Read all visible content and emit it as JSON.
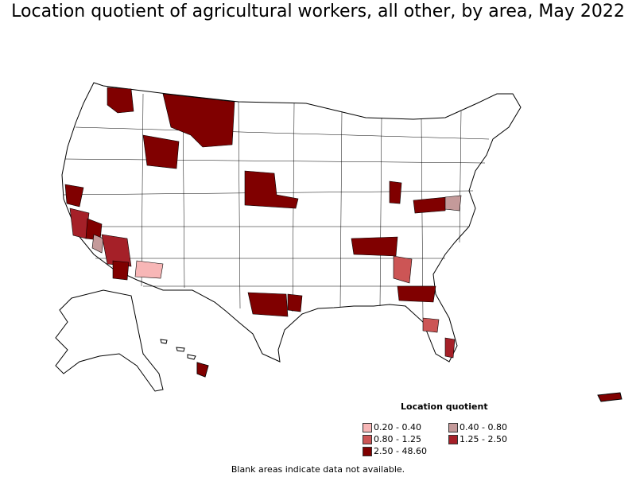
{
  "title": "Location quotient of agricultural workers, all other, by area, May 2022",
  "legend": {
    "title": "Location quotient",
    "items": [
      {
        "label": "0.20 - 0.40",
        "color": "#f7b6b6"
      },
      {
        "label": "0.40 - 0.80",
        "color": "#c49a9a"
      },
      {
        "label": "0.80 - 1.25",
        "color": "#cc5555"
      },
      {
        "label": "1.25 - 2.50",
        "color": "#a52028"
      },
      {
        "label": "2.50 - 48.60",
        "color": "#800000"
      }
    ]
  },
  "footnote": "Blank areas indicate data not available.",
  "map_colors": {
    "land": "#ffffff",
    "border": "#000000"
  }
}
